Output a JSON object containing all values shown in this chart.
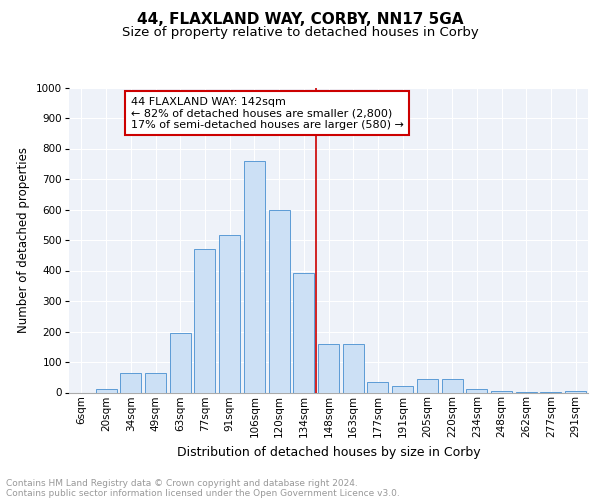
{
  "title1": "44, FLAXLAND WAY, CORBY, NN17 5GA",
  "title2": "Size of property relative to detached houses in Corby",
  "xlabel": "Distribution of detached houses by size in Corby",
  "ylabel": "Number of detached properties",
  "categories": [
    "6sqm",
    "20sqm",
    "34sqm",
    "49sqm",
    "63sqm",
    "77sqm",
    "91sqm",
    "106sqm",
    "120sqm",
    "134sqm",
    "148sqm",
    "163sqm",
    "177sqm",
    "191sqm",
    "205sqm",
    "220sqm",
    "234sqm",
    "248sqm",
    "262sqm",
    "277sqm",
    "291sqm"
  ],
  "values": [
    0,
    13,
    63,
    63,
    195,
    470,
    515,
    760,
    598,
    393,
    158,
    158,
    35,
    22,
    43,
    43,
    10,
    5,
    3,
    2,
    5
  ],
  "bar_color": "#cce0f5",
  "bar_edge_color": "#5b9bd5",
  "vline_x": 9.5,
  "vline_color": "#cc0000",
  "annotation_text": "44 FLAXLAND WAY: 142sqm\n← 82% of detached houses are smaller (2,800)\n17% of semi-detached houses are larger (580) →",
  "annotation_box_color": "#ffffff",
  "annotation_box_edge": "#cc0000",
  "ylim": [
    0,
    1000
  ],
  "yticks": [
    0,
    100,
    200,
    300,
    400,
    500,
    600,
    700,
    800,
    900,
    1000
  ],
  "background_color": "#eef2f9",
  "footer_line1": "Contains HM Land Registry data © Crown copyright and database right 2024.",
  "footer_line2": "Contains public sector information licensed under the Open Government Licence v3.0.",
  "title1_fontsize": 11,
  "title2_fontsize": 9.5,
  "xlabel_fontsize": 9,
  "ylabel_fontsize": 8.5,
  "tick_fontsize": 7.5,
  "footer_fontsize": 6.5,
  "annot_fontsize": 8
}
